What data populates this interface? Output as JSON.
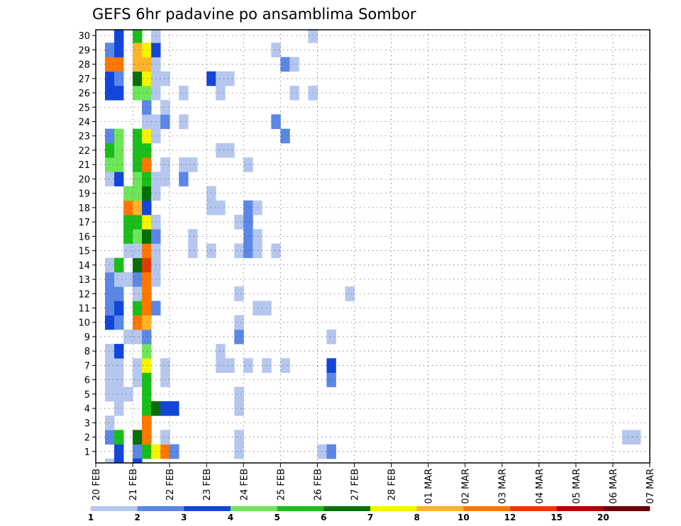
{
  "chart_data": {
    "type": "heatmap",
    "title": "GEFS 6hr padavine po ansamblima Sombor",
    "xlabel": "",
    "ylabel": "",
    "x_start_days": 0,
    "x_end_days": 15,
    "x_step_days": 0.25,
    "x_tick_labels": [
      "20 FEB",
      "21 FEB",
      "22 FEB",
      "23 FEB",
      "24 FEB",
      "25 FEB",
      "26 FEB",
      "27 FEB",
      "28 FEB",
      "01 MAR",
      "02 MAR",
      "03 MAR",
      "04 MAR",
      "05 MAR",
      "06 MAR",
      "07 MAR"
    ],
    "y_tick_labels": [
      "1",
      "2",
      "3",
      "4",
      "5",
      "6",
      "7",
      "8",
      "9",
      "10",
      "11",
      "12",
      "13",
      "14",
      "15",
      "16",
      "17",
      "18",
      "19",
      "20",
      "21",
      "22",
      "23",
      "24",
      "25",
      "26",
      "27",
      "28",
      "29",
      "30"
    ],
    "ylim": [
      0.2,
      30.4
    ],
    "grid": true,
    "colorbar": {
      "labels": [
        "1",
        "2",
        "3",
        "4",
        "5",
        "6",
        "7",
        "8",
        "10",
        "12",
        "15",
        "20"
      ],
      "colors": [
        "#b5c7ef",
        "#5b87e6",
        "#1345db",
        "#6ee65a",
        "#19be19",
        "#086e08",
        "#f5f500",
        "#ffb429",
        "#ff7800",
        "#e03c00",
        "#b40000",
        "#6e0000"
      ]
    },
    "cells": [
      [
        1,
        0.5,
        3
      ],
      [
        1,
        1.0,
        2
      ],
      [
        1,
        1.25,
        5
      ],
      [
        1,
        1.5,
        7
      ],
      [
        1,
        1.75,
        9
      ],
      [
        1,
        2.0,
        2
      ],
      [
        1,
        3.75,
        1
      ],
      [
        1,
        6.0,
        1
      ],
      [
        1,
        6.25,
        2
      ],
      [
        1,
        22.0,
        3
      ],
      [
        2,
        0.25,
        2
      ],
      [
        2,
        0.5,
        5
      ],
      [
        2,
        1.0,
        6
      ],
      [
        2,
        1.25,
        9
      ],
      [
        2,
        1.75,
        1
      ],
      [
        2,
        3.75,
        1
      ],
      [
        2,
        14.25,
        1
      ],
      [
        2,
        14.5,
        1
      ],
      [
        2,
        15.75,
        1
      ],
      [
        3,
        0.25,
        1
      ],
      [
        3,
        1.25,
        9
      ],
      [
        3,
        16.0,
        2
      ],
      [
        3,
        21.0,
        1
      ],
      [
        3,
        21.25,
        10
      ],
      [
        3,
        21.5,
        10
      ],
      [
        4,
        0.5,
        1
      ],
      [
        4,
        1.25,
        5
      ],
      [
        4,
        1.5,
        6
      ],
      [
        4,
        1.75,
        3
      ],
      [
        4,
        2.0,
        3
      ],
      [
        4,
        3.75,
        1
      ],
      [
        4,
        19.5,
        7
      ],
      [
        4,
        19.75,
        2
      ],
      [
        4,
        20.25,
        1
      ],
      [
        4,
        20.5,
        2
      ],
      [
        4,
        20.75,
        2
      ],
      [
        4,
        21.0,
        12
      ],
      [
        4,
        21.25,
        1
      ],
      [
        5,
        0.25,
        1
      ],
      [
        5,
        0.5,
        1
      ],
      [
        5,
        0.75,
        1
      ],
      [
        5,
        1.25,
        5
      ],
      [
        5,
        3.75,
        1
      ],
      [
        5,
        22.0,
        7
      ],
      [
        5,
        23.75,
        4
      ],
      [
        6,
        0.25,
        1
      ],
      [
        6,
        0.5,
        1
      ],
      [
        6,
        1.0,
        1
      ],
      [
        6,
        1.25,
        5
      ],
      [
        6,
        1.75,
        1
      ],
      [
        6,
        6.25,
        2
      ],
      [
        6,
        15.75,
        1
      ],
      [
        6,
        16.25,
        4
      ],
      [
        6,
        16.5,
        7
      ],
      [
        7,
        0.25,
        1
      ],
      [
        7,
        0.5,
        1
      ],
      [
        7,
        1.0,
        1
      ],
      [
        7,
        1.25,
        7
      ],
      [
        7,
        1.75,
        1
      ],
      [
        7,
        3.25,
        1
      ],
      [
        7,
        3.5,
        1
      ],
      [
        7,
        4.0,
        1
      ],
      [
        7,
        4.5,
        1
      ],
      [
        7,
        5.0,
        1
      ],
      [
        7,
        6.25,
        3
      ],
      [
        7,
        15.75,
        1
      ],
      [
        7,
        16.0,
        4
      ],
      [
        7,
        20.0,
        3
      ],
      [
        8,
        0.25,
        1
      ],
      [
        8,
        0.5,
        3
      ],
      [
        8,
        1.25,
        4
      ],
      [
        8,
        3.25,
        1
      ],
      [
        8,
        19.5,
        9
      ],
      [
        8,
        23.5,
        2
      ],
      [
        8,
        23.75,
        1
      ],
      [
        9,
        0.75,
        1
      ],
      [
        9,
        1.0,
        1
      ],
      [
        9,
        1.25,
        2
      ],
      [
        9,
        3.75,
        2
      ],
      [
        9,
        6.25,
        1
      ],
      [
        9,
        22.75,
        2
      ],
      [
        9,
        23.5,
        1
      ],
      [
        9,
        24.25,
        7
      ],
      [
        9,
        24.5,
        3
      ],
      [
        10,
        0.25,
        3
      ],
      [
        10,
        0.5,
        2
      ],
      [
        10,
        1.0,
        9
      ],
      [
        10,
        1.25,
        8
      ],
      [
        10,
        3.75,
        1
      ],
      [
        10,
        17.25,
        1
      ],
      [
        11,
        0.25,
        2
      ],
      [
        11,
        0.5,
        3
      ],
      [
        11,
        1.0,
        5
      ],
      [
        11,
        1.25,
        9
      ],
      [
        11,
        1.5,
        2
      ],
      [
        11,
        4.25,
        1
      ],
      [
        11,
        4.5,
        1
      ],
      [
        11,
        15.0,
        1
      ],
      [
        12,
        0.25,
        2
      ],
      [
        12,
        0.5,
        2
      ],
      [
        12,
        1.0,
        1
      ],
      [
        12,
        1.25,
        9
      ],
      [
        12,
        3.75,
        1
      ],
      [
        12,
        6.75,
        1
      ],
      [
        13,
        0.25,
        2
      ],
      [
        13,
        0.5,
        1
      ],
      [
        13,
        0.75,
        1
      ],
      [
        13,
        1.0,
        2
      ],
      [
        13,
        1.25,
        9
      ],
      [
        13,
        1.5,
        1
      ],
      [
        13,
        15.75,
        1
      ],
      [
        13,
        20.0,
        3
      ],
      [
        13,
        23.5,
        2
      ],
      [
        13,
        23.75,
        10
      ],
      [
        13,
        24.0,
        2
      ],
      [
        14,
        0.25,
        1
      ],
      [
        14,
        0.5,
        5
      ],
      [
        14,
        1.0,
        6
      ],
      [
        14,
        1.25,
        10
      ],
      [
        14,
        1.5,
        1
      ],
      [
        14,
        17.25,
        1
      ],
      [
        14,
        20.25,
        1
      ],
      [
        14,
        21.25,
        7
      ],
      [
        14,
        22.5,
        2
      ],
      [
        14,
        22.75,
        9
      ],
      [
        14,
        24.5,
        1
      ],
      [
        14,
        24.75,
        1
      ],
      [
        15,
        0.75,
        1
      ],
      [
        15,
        1.0,
        1
      ],
      [
        15,
        1.25,
        9
      ],
      [
        15,
        1.5,
        1
      ],
      [
        15,
        2.5,
        1
      ],
      [
        15,
        3.0,
        1
      ],
      [
        15,
        3.75,
        1
      ],
      [
        15,
        4.0,
        2
      ],
      [
        15,
        4.25,
        1
      ],
      [
        15,
        4.75,
        1
      ],
      [
        15,
        16.0,
        1
      ],
      [
        15,
        17.25,
        1
      ],
      [
        15,
        17.5,
        1
      ],
      [
        15,
        21.5,
        1
      ],
      [
        15,
        23.0,
        2
      ],
      [
        16,
        0.75,
        5
      ],
      [
        16,
        1.0,
        4
      ],
      [
        16,
        1.25,
        6
      ],
      [
        16,
        1.5,
        2
      ],
      [
        16,
        2.5,
        1
      ],
      [
        16,
        4.0,
        2
      ],
      [
        16,
        4.25,
        1
      ],
      [
        16,
        16.0,
        1
      ],
      [
        16,
        21.5,
        1
      ],
      [
        17,
        0.75,
        5
      ],
      [
        17,
        1.0,
        5
      ],
      [
        17,
        1.25,
        7
      ],
      [
        17,
        1.5,
        1
      ],
      [
        17,
        3.75,
        1
      ],
      [
        17,
        4.0,
        2
      ],
      [
        17,
        21.5,
        1
      ],
      [
        18,
        0.75,
        9
      ],
      [
        18,
        1.0,
        8
      ],
      [
        18,
        1.25,
        3
      ],
      [
        18,
        3.0,
        1
      ],
      [
        18,
        3.25,
        1
      ],
      [
        18,
        4.0,
        2
      ],
      [
        18,
        4.25,
        1
      ],
      [
        18,
        17.25,
        1
      ],
      [
        18,
        17.5,
        7
      ],
      [
        18,
        17.75,
        8
      ],
      [
        19,
        0.75,
        4
      ],
      [
        19,
        1.0,
        4
      ],
      [
        19,
        1.25,
        6
      ],
      [
        19,
        1.5,
        1
      ],
      [
        19,
        3.0,
        1
      ],
      [
        19,
        17.5,
        2
      ],
      [
        19,
        17.75,
        2
      ],
      [
        19,
        24.5,
        2
      ],
      [
        20,
        0.25,
        1
      ],
      [
        20,
        0.5,
        3
      ],
      [
        20,
        1.0,
        4
      ],
      [
        20,
        1.25,
        5
      ],
      [
        20,
        1.5,
        1
      ],
      [
        20,
        1.75,
        1
      ],
      [
        20,
        2.25,
        2
      ],
      [
        20,
        19.75,
        1
      ],
      [
        21,
        0.25,
        4
      ],
      [
        21,
        0.5,
        4
      ],
      [
        21,
        1.0,
        5
      ],
      [
        21,
        1.25,
        9
      ],
      [
        21,
        1.75,
        1
      ],
      [
        21,
        2.25,
        1
      ],
      [
        21,
        2.5,
        1
      ],
      [
        21,
        4.0,
        1
      ],
      [
        21,
        20.0,
        5
      ],
      [
        21,
        20.25,
        5
      ],
      [
        22,
        0.25,
        5
      ],
      [
        22,
        0.5,
        4
      ],
      [
        22,
        1.0,
        5
      ],
      [
        22,
        1.25,
        5
      ],
      [
        22,
        3.25,
        1
      ],
      [
        22,
        3.5,
        1
      ],
      [
        22,
        17.25,
        1
      ],
      [
        23,
        0.25,
        2
      ],
      [
        23,
        0.5,
        4
      ],
      [
        23,
        1.0,
        5
      ],
      [
        23,
        1.25,
        7
      ],
      [
        23,
        1.5,
        1
      ],
      [
        23,
        5.0,
        2
      ],
      [
        23,
        21.75,
        1
      ],
      [
        24,
        1.25,
        1
      ],
      [
        24,
        1.5,
        1
      ],
      [
        24,
        1.75,
        2
      ],
      [
        24,
        2.25,
        1
      ],
      [
        24,
        4.75,
        2
      ],
      [
        24,
        15.75,
        1
      ],
      [
        24,
        16.0,
        4
      ],
      [
        24,
        20.5,
        1
      ],
      [
        24,
        20.75,
        1
      ],
      [
        24,
        29.75,
        1
      ],
      [
        25,
        1.25,
        2
      ],
      [
        25,
        1.75,
        1
      ],
      [
        25,
        16.0,
        2
      ],
      [
        25,
        16.25,
        2
      ],
      [
        25,
        16.5,
        1
      ],
      [
        25,
        21.0,
        12
      ],
      [
        25,
        22.25,
        2
      ],
      [
        25,
        22.5,
        1
      ],
      [
        25,
        22.75,
        3
      ],
      [
        25,
        23.0,
        2
      ],
      [
        26,
        0.25,
        3
      ],
      [
        26,
        0.5,
        3
      ],
      [
        26,
        1.0,
        4
      ],
      [
        26,
        1.25,
        4
      ],
      [
        26,
        1.5,
        1
      ],
      [
        26,
        2.25,
        1
      ],
      [
        26,
        3.25,
        1
      ],
      [
        26,
        5.25,
        1
      ],
      [
        26,
        5.75,
        1
      ],
      [
        26,
        23.75,
        2
      ],
      [
        26,
        29.75,
        1
      ],
      [
        27,
        0.25,
        3
      ],
      [
        27,
        0.5,
        2
      ],
      [
        27,
        1.0,
        6
      ],
      [
        27,
        1.25,
        7
      ],
      [
        27,
        1.5,
        1
      ],
      [
        27,
        1.75,
        1
      ],
      [
        27,
        3.0,
        3
      ],
      [
        27,
        3.25,
        1
      ],
      [
        27,
        3.5,
        1
      ],
      [
        27,
        23.75,
        2
      ],
      [
        28,
        0.25,
        9
      ],
      [
        28,
        0.5,
        9
      ],
      [
        28,
        1.0,
        8
      ],
      [
        28,
        1.25,
        8
      ],
      [
        28,
        1.5,
        1
      ],
      [
        28,
        5.0,
        2
      ],
      [
        28,
        5.25,
        1
      ],
      [
        28,
        16.0,
        10
      ],
      [
        28,
        16.25,
        8
      ],
      [
        28,
        22.0,
        1
      ],
      [
        28,
        22.25,
        1
      ],
      [
        28,
        23.5,
        2
      ],
      [
        29,
        0.25,
        2
      ],
      [
        29,
        0.5,
        3
      ],
      [
        29,
        1.0,
        8
      ],
      [
        29,
        1.25,
        7
      ],
      [
        29,
        1.5,
        3
      ],
      [
        29,
        4.75,
        1
      ],
      [
        30,
        0.5,
        3
      ],
      [
        30,
        1.0,
        5
      ],
      [
        30,
        1.5,
        1
      ],
      [
        30,
        5.75,
        1
      ],
      [
        0,
        0.25,
        1
      ],
      [
        0,
        0.5,
        3
      ],
      [
        0,
        1.0,
        3
      ]
    ]
  }
}
